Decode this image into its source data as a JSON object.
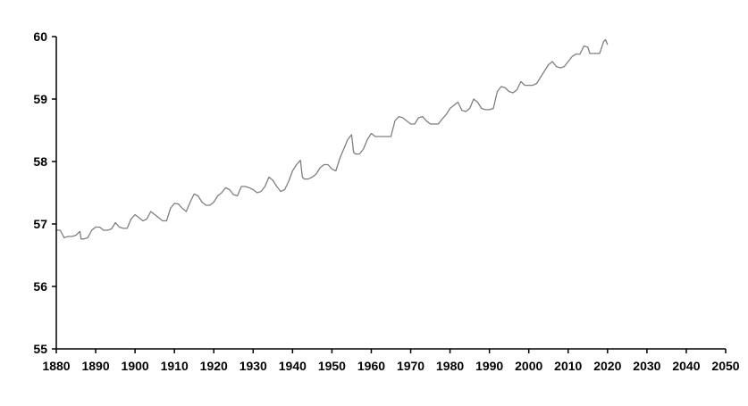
{
  "chart_data": {
    "type": "line",
    "title": "",
    "xlabel": "",
    "ylabel": "",
    "xlim": [
      1880,
      2050
    ],
    "ylim": [
      55,
      60
    ],
    "x_ticks": [
      "1880",
      "1890",
      "1900",
      "1910",
      "1920",
      "1930",
      "1940",
      "1950",
      "1960",
      "1970",
      "1980",
      "1990",
      "2000",
      "2010",
      "2020",
      "2030",
      "2040",
      "2050"
    ],
    "y_ticks": [
      "55",
      "56",
      "57",
      "58",
      "59",
      "60"
    ],
    "grid": false,
    "legend": "none",
    "series": [
      {
        "color": "#7f7f7f",
        "points": [
          [
            1880,
            56.9
          ],
          [
            1881,
            56.9
          ],
          [
            1882,
            56.78
          ],
          [
            1883,
            56.8
          ],
          [
            1884,
            56.8
          ],
          [
            1885,
            56.82
          ],
          [
            1886,
            56.88
          ],
          [
            1886.3,
            56.76
          ],
          [
            1887,
            56.76
          ],
          [
            1888,
            56.78
          ],
          [
            1889,
            56.9
          ],
          [
            1890,
            56.95
          ],
          [
            1891,
            56.95
          ],
          [
            1892,
            56.9
          ],
          [
            1893,
            56.9
          ],
          [
            1894,
            56.92
          ],
          [
            1895,
            57.02
          ],
          [
            1896,
            56.95
          ],
          [
            1897,
            56.93
          ],
          [
            1898,
            56.93
          ],
          [
            1899,
            57.08
          ],
          [
            1900,
            57.15
          ],
          [
            1901,
            57.1
          ],
          [
            1902,
            57.05
          ],
          [
            1903,
            57.08
          ],
          [
            1904,
            57.2
          ],
          [
            1905,
            57.15
          ],
          [
            1906,
            57.1
          ],
          [
            1907,
            57.05
          ],
          [
            1908,
            57.05
          ],
          [
            1909,
            57.25
          ],
          [
            1910,
            57.33
          ],
          [
            1911,
            57.32
          ],
          [
            1912,
            57.25
          ],
          [
            1913,
            57.2
          ],
          [
            1914,
            57.35
          ],
          [
            1915,
            57.48
          ],
          [
            1916,
            57.45
          ],
          [
            1917,
            57.35
          ],
          [
            1918,
            57.3
          ],
          [
            1919,
            57.3
          ],
          [
            1920,
            57.35
          ],
          [
            1921,
            57.45
          ],
          [
            1922,
            57.5
          ],
          [
            1923,
            57.58
          ],
          [
            1924,
            57.55
          ],
          [
            1925,
            57.47
          ],
          [
            1926,
            57.45
          ],
          [
            1927,
            57.6
          ],
          [
            1928,
            57.6
          ],
          [
            1929,
            57.58
          ],
          [
            1930,
            57.55
          ],
          [
            1931,
            57.5
          ],
          [
            1932,
            57.52
          ],
          [
            1933,
            57.6
          ],
          [
            1934,
            57.75
          ],
          [
            1935,
            57.7
          ],
          [
            1936,
            57.6
          ],
          [
            1937,
            57.52
          ],
          [
            1938,
            57.55
          ],
          [
            1939,
            57.68
          ],
          [
            1940,
            57.85
          ],
          [
            1941,
            57.95
          ],
          [
            1942,
            58.02
          ],
          [
            1942.5,
            57.75
          ],
          [
            1943,
            57.72
          ],
          [
            1944,
            57.72
          ],
          [
            1945,
            57.75
          ],
          [
            1946,
            57.8
          ],
          [
            1947,
            57.9
          ],
          [
            1948,
            57.95
          ],
          [
            1949,
            57.95
          ],
          [
            1950,
            57.88
          ],
          [
            1951,
            57.85
          ],
          [
            1952,
            58.05
          ],
          [
            1953,
            58.2
          ],
          [
            1954,
            58.35
          ],
          [
            1955,
            58.43
          ],
          [
            1955.5,
            58.15
          ],
          [
            1956,
            58.12
          ],
          [
            1957,
            58.12
          ],
          [
            1958,
            58.2
          ],
          [
            1959,
            58.35
          ],
          [
            1960,
            58.45
          ],
          [
            1961,
            58.4
          ],
          [
            1962,
            58.4
          ],
          [
            1963,
            58.4
          ],
          [
            1964,
            58.4
          ],
          [
            1965,
            58.4
          ],
          [
            1966,
            58.65
          ],
          [
            1967,
            58.72
          ],
          [
            1968,
            58.7
          ],
          [
            1969,
            58.65
          ],
          [
            1970,
            58.6
          ],
          [
            1971,
            58.6
          ],
          [
            1972,
            58.7
          ],
          [
            1973,
            58.72
          ],
          [
            1974,
            58.65
          ],
          [
            1975,
            58.6
          ],
          [
            1976,
            58.6
          ],
          [
            1977,
            58.6
          ],
          [
            1978,
            58.68
          ],
          [
            1979,
            58.75
          ],
          [
            1980,
            58.85
          ],
          [
            1981,
            58.9
          ],
          [
            1982,
            58.95
          ],
          [
            1983,
            58.82
          ],
          [
            1984,
            58.8
          ],
          [
            1985,
            58.85
          ],
          [
            1986,
            59.0
          ],
          [
            1987,
            58.95
          ],
          [
            1988,
            58.85
          ],
          [
            1989,
            58.83
          ],
          [
            1990,
            58.83
          ],
          [
            1991,
            58.85
          ],
          [
            1992,
            59.12
          ],
          [
            1993,
            59.2
          ],
          [
            1994,
            59.18
          ],
          [
            1995,
            59.12
          ],
          [
            1996,
            59.1
          ],
          [
            1997,
            59.15
          ],
          [
            1998,
            59.28
          ],
          [
            1999,
            59.22
          ],
          [
            2000,
            59.22
          ],
          [
            2001,
            59.22
          ],
          [
            2002,
            59.25
          ],
          [
            2003,
            59.35
          ],
          [
            2004,
            59.45
          ],
          [
            2005,
            59.55
          ],
          [
            2006,
            59.6
          ],
          [
            2007,
            59.52
          ],
          [
            2008,
            59.5
          ],
          [
            2009,
            59.52
          ],
          [
            2010,
            59.6
          ],
          [
            2011,
            59.68
          ],
          [
            2012,
            59.72
          ],
          [
            2013,
            59.72
          ],
          [
            2014,
            59.85
          ],
          [
            2015,
            59.83
          ],
          [
            2015.5,
            59.73
          ],
          [
            2016,
            59.73
          ],
          [
            2017,
            59.73
          ],
          [
            2018,
            59.73
          ],
          [
            2019,
            59.92
          ],
          [
            2019.5,
            59.95
          ],
          [
            2020,
            59.87
          ]
        ]
      }
    ]
  }
}
